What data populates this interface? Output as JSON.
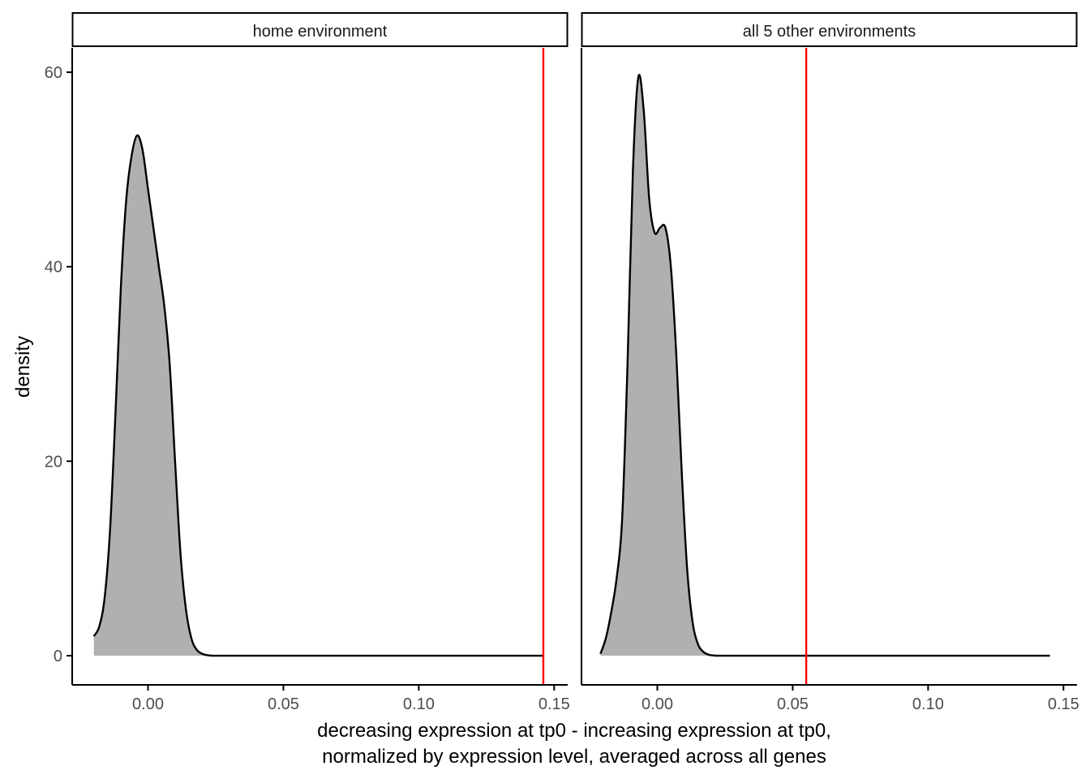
{
  "chart_data": {
    "type": "area",
    "facets": [
      {
        "strip_label": "home environment",
        "vline": 0.146,
        "series": {
          "x": [
            -0.02,
            -0.018,
            -0.016,
            -0.014,
            -0.012,
            -0.01,
            -0.008,
            -0.006,
            -0.004,
            -0.002,
            0.0,
            0.002,
            0.004,
            0.006,
            0.008,
            0.01,
            0.012,
            0.014,
            0.016,
            0.018,
            0.02,
            0.022,
            0.024,
            0.03,
            0.05,
            0.08,
            0.11,
            0.146
          ],
          "y": [
            2.0,
            3.0,
            6.0,
            13.0,
            25.0,
            38.0,
            47.0,
            51.5,
            53.5,
            52.0,
            48.0,
            44.0,
            40.0,
            36.0,
            30.0,
            20.0,
            10.5,
            4.8,
            1.8,
            0.6,
            0.2,
            0.05,
            0.0,
            0.0,
            0.0,
            0.0,
            0.0,
            0.0
          ]
        }
      },
      {
        "strip_label": "all 5 other environments",
        "vline": 0.055,
        "series": {
          "x": [
            -0.021,
            -0.019,
            -0.017,
            -0.015,
            -0.013,
            -0.011,
            -0.009,
            -0.007,
            -0.005,
            -0.003,
            -0.001,
            0.001,
            0.003,
            0.005,
            0.007,
            0.009,
            0.011,
            0.013,
            0.015,
            0.017,
            0.019,
            0.021,
            0.023,
            0.03,
            0.05,
            0.08,
            0.11,
            0.145
          ],
          "y": [
            0.2,
            1.8,
            4.5,
            8.0,
            14.0,
            30.0,
            50.0,
            59.5,
            56.0,
            47.0,
            43.5,
            44.0,
            44.0,
            40.0,
            31.0,
            19.0,
            9.0,
            3.5,
            1.2,
            0.4,
            0.1,
            0.02,
            0.0,
            0.0,
            0.0,
            0.0,
            0.0,
            0.0
          ]
        }
      }
    ],
    "x_ticks": [
      0.0,
      0.05,
      0.1,
      0.15
    ],
    "x_tick_labels": [
      "0.00",
      "0.05",
      "0.10",
      "0.15"
    ],
    "y_ticks": [
      0,
      20,
      40,
      60
    ],
    "y_tick_labels": [
      "0",
      "20",
      "40",
      "60"
    ],
    "xlim": [
      -0.028,
      0.155
    ],
    "ylim": [
      -3.0,
      62.5
    ],
    "xlabel_line1": "decreasing expression at tp0 - increasing expression at tp0,",
    "xlabel_line2": "normalized by expression level, averaged across all genes",
    "ylabel": "density",
    "fill_color": "#b0b0b0",
    "line_color": "#000000",
    "vline_color": "#ff0000",
    "grid": false,
    "legend": "none"
  }
}
